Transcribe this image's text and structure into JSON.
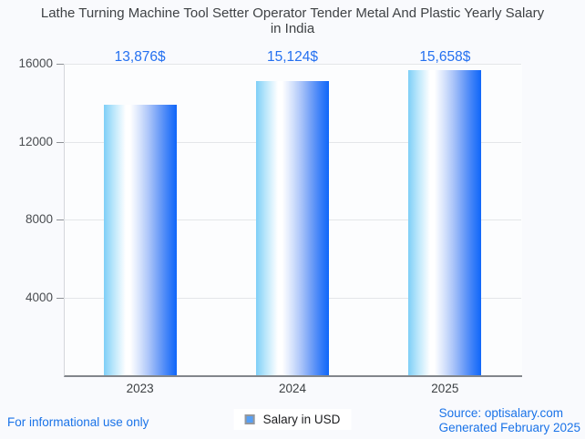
{
  "header": {
    "line1": "Lathe Turning Machine Tool Setter Operator Tender Metal And Plastic Yearly Salary",
    "line2": "in India"
  },
  "chart_data": {
    "type": "bar",
    "title": "Lathe Turning Machine Tool Setter Operator Tender Metal And Plastic Yearly Salary in India",
    "categories": [
      "2023",
      "2024",
      "2025"
    ],
    "series": [
      {
        "name": "Salary in USD",
        "values": [
          13876,
          15124,
          15658
        ]
      }
    ],
    "value_labels": [
      "13,876$",
      "15,124$",
      "15,658$"
    ],
    "y_ticks": [
      4000,
      8000,
      12000,
      16000
    ],
    "ylim": [
      0,
      16000
    ],
    "grid": true,
    "legend_position": "bottom",
    "xlabel": "",
    "ylabel": ""
  },
  "legend": {
    "label": "Salary in USD",
    "marker_color": "#57a0f5",
    "marker_border_color": "#96989b"
  },
  "footer": {
    "disclaimer": "For informational use only",
    "source": "Source: optisalary.com",
    "generated": "Generated February 2025"
  },
  "colors": {
    "value_label_blue": "#2470f0",
    "footer_blue": "#1a73e8",
    "title_gray": "#3f4245",
    "axis_label_gray": "#494c50",
    "gridline_gray": "#e4e6e9",
    "baseline_gray": "#82868b",
    "bar_gradient_left": "#7ecff7",
    "bar_gradient_mid": "#ffffff",
    "bar_gradient_right": "#0f66f9",
    "page_background": "#f9fafd"
  }
}
